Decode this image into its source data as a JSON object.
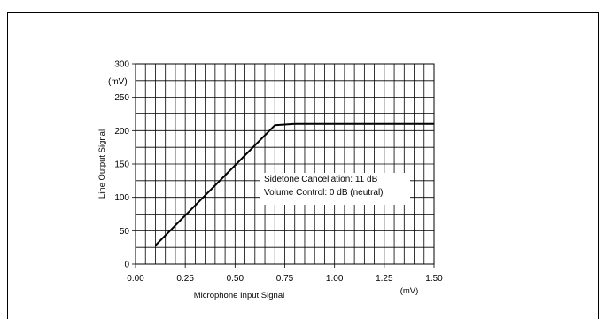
{
  "chart_data": {
    "type": "line",
    "xlabel": "Microphone Input Signal",
    "xunit": "(mV)",
    "ylabel": "Line Output Signal",
    "yunit": "(mV)",
    "xlim": [
      0.0,
      1.5
    ],
    "ylim": [
      0,
      300
    ],
    "xticks": [
      "0.00",
      "0.25",
      "0.50",
      "0.75",
      "1.00",
      "1.25",
      "1.50"
    ],
    "yticks": [
      "0",
      "50",
      "100",
      "150",
      "200",
      "250",
      "300"
    ],
    "grid": true,
    "series": [
      {
        "x": [
          0.1,
          0.7,
          0.8,
          1.5
        ],
        "y": [
          28,
          208,
          210,
          210
        ]
      }
    ],
    "annotations": [
      "Sidetone Cancellation: 11 dB",
      "Volume Control: 0 dB (neutral)"
    ]
  }
}
